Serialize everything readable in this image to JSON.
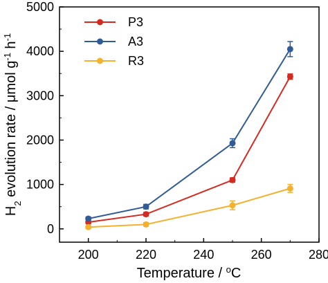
{
  "chart_data": {
    "type": "line",
    "title": "",
    "xlabel": "Temperature / °C",
    "ylabel": "H2 evolution rate / μmol g-1 h-1",
    "x": [
      200,
      220,
      250,
      270
    ],
    "xlim": [
      190,
      280
    ],
    "ylim": [
      -300,
      5000
    ],
    "xticks": [
      200,
      220,
      240,
      260,
      280
    ],
    "yticks": [
      0,
      1000,
      2000,
      3000,
      4000,
      5000
    ],
    "grid": false,
    "legend_position": "top-left",
    "series": [
      {
        "name": "P3",
        "color": "#d42a20",
        "values": [
          150,
          330,
          1100,
          3430
        ],
        "errors": [
          30,
          40,
          50,
          60
        ]
      },
      {
        "name": "A3",
        "color": "#2f5b97",
        "values": [
          230,
          500,
          1930,
          4050
        ],
        "errors": [
          40,
          50,
          100,
          170
        ]
      },
      {
        "name": "R3",
        "color": "#f4b12d",
        "values": [
          40,
          100,
          530,
          910
        ],
        "errors": [
          30,
          40,
          100,
          90
        ]
      }
    ]
  }
}
